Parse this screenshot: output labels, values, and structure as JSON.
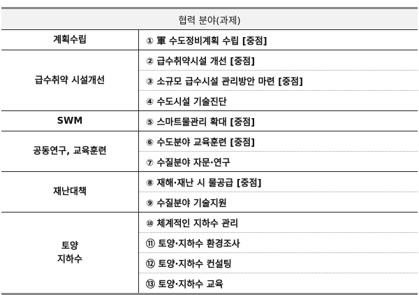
{
  "header": "협력 분야(과제)",
  "groups": [
    {
      "category": "계획수립",
      "tasks": [
        "① 軍 수도정비계획 수립 [중점]"
      ]
    },
    {
      "category": "급수취약 시설개선",
      "tasks": [
        "② 급수취약시설 개선 [중점]",
        "③ 소규모 급수시설 관리방안 마련 [중점]",
        "④ 수도시설 기술진단"
      ]
    },
    {
      "category": "SWM",
      "tasks": [
        "⑤ 스마트물관리 확대 [중점]"
      ]
    },
    {
      "category": "공동연구, 교육훈련",
      "tasks": [
        "⑥ 수도분야 교육훈련 [중점]",
        "⑦ 수질분야 자문·연구"
      ]
    },
    {
      "category": "재난대책",
      "tasks": [
        "⑧ 재해·재난 시 물공급 [중점]",
        "⑨ 수질분야 기술지원"
      ]
    },
    {
      "category_lines": [
        "토양",
        "지하수"
      ],
      "tasks": [
        "⑩ 체계적인 지하수 관리",
        "⑪ 토양·지하수 환경조사",
        "⑫ 토양·지하수 컨설팅",
        "⑬ 토양·지하수 교육"
      ]
    }
  ]
}
